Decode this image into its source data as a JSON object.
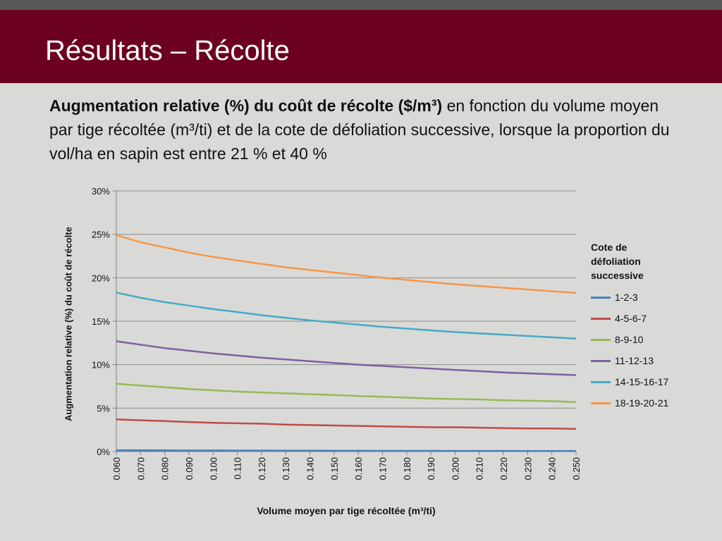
{
  "slide": {
    "title": "Résultats – Récolte",
    "subtitle_bold": "Augmentation relative (%) du coût de récolte ($/m³)",
    "subtitle_rest": " en fonction du volume moyen par tige récoltée (m³/ti) et de la cote de défoliation successive, lorsque la proportion du vol/ha en sapin est entre 21 % et 40 %"
  },
  "colors": {
    "title_bar": "#6b0021",
    "background": "#d9dad8"
  },
  "chart_data": {
    "type": "line",
    "xlabel": "Volume moyen par tige récoltée (m³/ti)",
    "ylabel": "Augmentation relative (%) du coût de récolte",
    "x": [
      0.06,
      0.07,
      0.08,
      0.09,
      0.1,
      0.11,
      0.12,
      0.13,
      0.14,
      0.15,
      0.16,
      0.17,
      0.18,
      0.19,
      0.2,
      0.21,
      0.22,
      0.23,
      0.24,
      0.25
    ],
    "x_tick_labels": [
      "0.060",
      "0.070",
      "0.080",
      "0.090",
      "0.100",
      "0.110",
      "0.120",
      "0.130",
      "0.140",
      "0.150",
      "0.160",
      "0.170",
      "0.180",
      "0.190",
      "0.200",
      "0.210",
      "0.220",
      "0.230",
      "0.240",
      "0.250"
    ],
    "ylim": [
      0,
      30
    ],
    "y_ticks": [
      0,
      5,
      10,
      15,
      20,
      25,
      30
    ],
    "y_tick_labels": [
      "0%",
      "5%",
      "10%",
      "15%",
      "20%",
      "25%",
      "30%"
    ],
    "grid": true,
    "legend_title": "Cote de défoliation successive",
    "legend_position": "right",
    "series": [
      {
        "name": "1-2-3",
        "color": "#4a7ebb",
        "values": [
          0.15,
          0.14,
          0.13,
          0.12,
          0.12,
          0.11,
          0.11,
          0.1,
          0.1,
          0.09,
          0.09,
          0.08,
          0.08,
          0.08,
          0.07,
          0.07,
          0.07,
          0.06,
          0.06,
          0.06
        ]
      },
      {
        "name": "4-5-6-7",
        "color": "#be4b48",
        "values": [
          3.7,
          3.6,
          3.5,
          3.4,
          3.3,
          3.25,
          3.2,
          3.1,
          3.05,
          3.0,
          2.95,
          2.9,
          2.85,
          2.8,
          2.8,
          2.75,
          2.7,
          2.65,
          2.65,
          2.6
        ]
      },
      {
        "name": "8-9-10",
        "color": "#98b954",
        "values": [
          7.8,
          7.6,
          7.4,
          7.2,
          7.05,
          6.9,
          6.8,
          6.7,
          6.6,
          6.5,
          6.4,
          6.3,
          6.2,
          6.1,
          6.05,
          6.0,
          5.9,
          5.85,
          5.8,
          5.7
        ]
      },
      {
        "name": "11-12-13",
        "color": "#7d60a0",
        "values": [
          12.7,
          12.3,
          11.9,
          11.6,
          11.3,
          11.05,
          10.8,
          10.6,
          10.4,
          10.2,
          10.0,
          9.85,
          9.7,
          9.55,
          9.4,
          9.25,
          9.1,
          9.0,
          8.9,
          8.8
        ]
      },
      {
        "name": "14-15-16-17",
        "color": "#46aac5",
        "values": [
          18.3,
          17.7,
          17.2,
          16.8,
          16.4,
          16.05,
          15.7,
          15.4,
          15.1,
          14.85,
          14.6,
          14.35,
          14.15,
          13.95,
          13.75,
          13.6,
          13.45,
          13.3,
          13.15,
          13.0
        ]
      },
      {
        "name": "18-19-20-21",
        "color": "#f79646",
        "values": [
          24.9,
          24.1,
          23.5,
          22.9,
          22.4,
          22.0,
          21.6,
          21.2,
          20.9,
          20.6,
          20.3,
          20.0,
          19.75,
          19.5,
          19.25,
          19.05,
          18.85,
          18.65,
          18.45,
          18.25
        ]
      }
    ]
  }
}
